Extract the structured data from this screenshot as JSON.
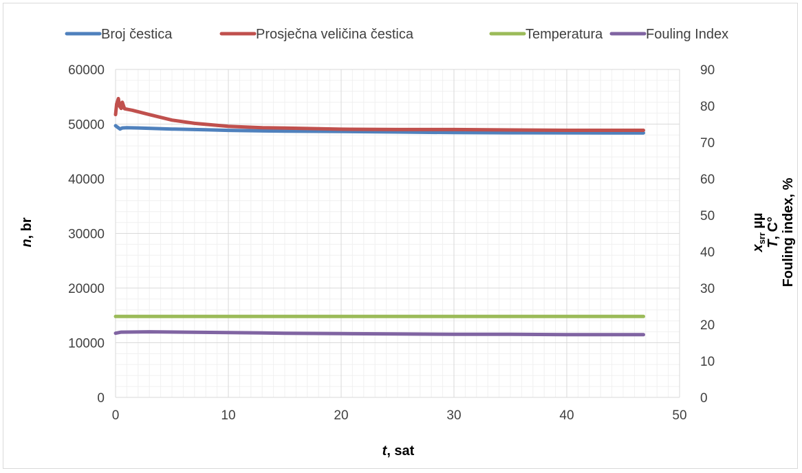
{
  "chart_data": {
    "type": "line",
    "xlabel_italic": "t",
    "xlabel_rest": ", sat",
    "ylabel_italic": "n",
    "ylabel_rest": ", br",
    "y2label_lines": [
      {
        "italic": "x",
        "sub": "srr",
        "rest": " µµ"
      },
      {
        "italic": "T",
        "sub": "",
        "rest": ", C°"
      },
      {
        "italic": "",
        "sub": "",
        "rest": "Fouling index, %"
      }
    ],
    "xlim": [
      0,
      50
    ],
    "ylim": [
      0,
      60000
    ],
    "y2lim": [
      0,
      90
    ],
    "x_ticks": [
      "0",
      "10",
      "20",
      "30",
      "40",
      "50"
    ],
    "y_ticks": [
      "0",
      "10000",
      "20000",
      "30000",
      "40000",
      "50000",
      "60000"
    ],
    "y2_ticks": [
      "0",
      "10",
      "20",
      "30",
      "40",
      "50",
      "60",
      "70",
      "80",
      "90"
    ],
    "grid": true,
    "legend_position": "top",
    "series": [
      {
        "name": "Broj čestica",
        "color": "#4f81bd",
        "axis": "left",
        "points": [
          [
            0,
            49700
          ],
          [
            0.2,
            49400
          ],
          [
            0.4,
            49100
          ],
          [
            0.6,
            49300
          ],
          [
            1,
            49350
          ],
          [
            2,
            49300
          ],
          [
            5,
            49100
          ],
          [
            8,
            48950
          ],
          [
            10,
            48850
          ],
          [
            15,
            48700
          ],
          [
            20,
            48650
          ],
          [
            25,
            48550
          ],
          [
            30,
            48450
          ],
          [
            35,
            48420
          ],
          [
            40,
            48400
          ],
          [
            45,
            48380
          ],
          [
            46.8,
            48380
          ]
        ]
      },
      {
        "name": "Prosječna veličina čestica",
        "color": "#c0504d",
        "axis": "right",
        "points": [
          [
            0,
            77.6
          ],
          [
            0.1,
            80.5
          ],
          [
            0.25,
            82.0
          ],
          [
            0.35,
            80.0
          ],
          [
            0.5,
            79.3
          ],
          [
            0.6,
            81.0
          ],
          [
            0.8,
            79.2
          ],
          [
            1.5,
            78.8
          ],
          [
            3,
            77.6
          ],
          [
            5,
            76.1
          ],
          [
            7,
            75.2
          ],
          [
            10,
            74.4
          ],
          [
            13,
            74.0
          ],
          [
            15,
            73.9
          ],
          [
            20,
            73.6
          ],
          [
            25,
            73.5
          ],
          [
            30,
            73.5
          ],
          [
            35,
            73.4
          ],
          [
            40,
            73.3
          ],
          [
            46.8,
            73.3
          ]
        ]
      },
      {
        "name": "Temperatura",
        "color": "#9bbb59",
        "axis": "right",
        "points": [
          [
            0,
            22.2
          ],
          [
            46.8,
            22.2
          ]
        ]
      },
      {
        "name": "Fouling Index",
        "color": "#8064a2",
        "axis": "right",
        "points": [
          [
            0,
            17.6
          ],
          [
            0.5,
            17.9
          ],
          [
            3,
            18.0
          ],
          [
            6,
            17.9
          ],
          [
            10,
            17.8
          ],
          [
            15,
            17.6
          ],
          [
            20,
            17.5
          ],
          [
            25,
            17.4
          ],
          [
            30,
            17.3
          ],
          [
            35,
            17.3
          ],
          [
            40,
            17.2
          ],
          [
            46.8,
            17.2
          ]
        ]
      }
    ]
  }
}
